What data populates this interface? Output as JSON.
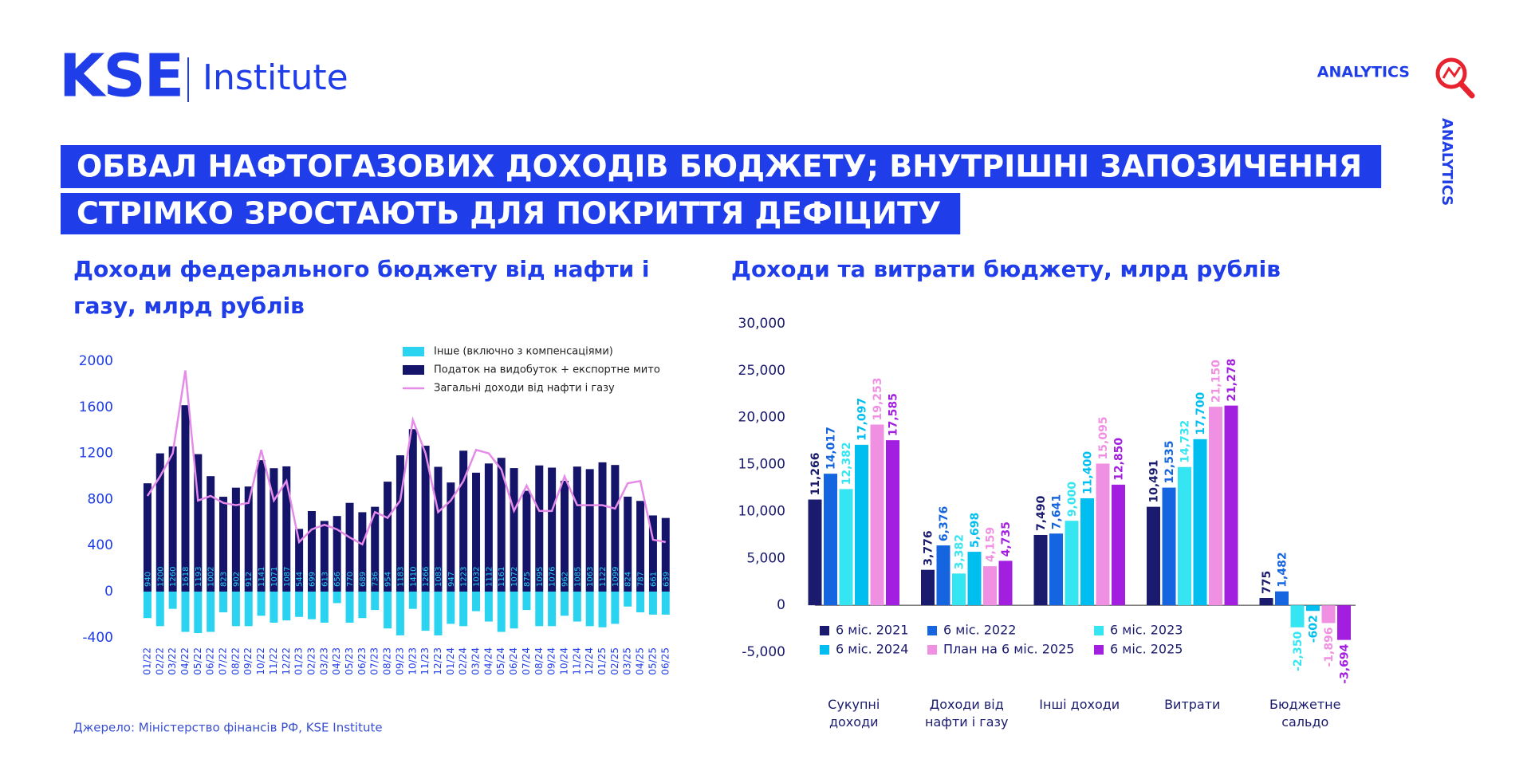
{
  "header": {
    "logo": "KSE",
    "logo_sub": "Institute",
    "analytics": "ANALYTICS",
    "analytics_vertical": "ANALYTICS",
    "title_lines": [
      "ОБВАЛ НАФТОГАЗОВИХ ДОХОДІВ БЮДЖЕТУ; ВНУТРІШНІ ЗАПОЗИЧЕННЯ",
      "СТРІМКО ЗРОСТАЮТЬ ДЛЯ ПОКРИТТЯ ДЕФІЦИТУ"
    ]
  },
  "source": "Джерело: Міністерство фінансів РФ, KSE Institute",
  "chart_data": [
    {
      "type": "bar",
      "stacked": true,
      "title": "Доходи федерального бюджету від нафти і газу, млрд рублів",
      "categories": [
        "01/22",
        "02/22",
        "03/22",
        "04/22",
        "05/22",
        "06/22",
        "07/22",
        "08/22",
        "09/22",
        "10/22",
        "11/22",
        "12/22",
        "01/23",
        "02/23",
        "03/23",
        "04/23",
        "05/23",
        "06/23",
        "07/23",
        "08/23",
        "09/23",
        "10/23",
        "11/23",
        "12/23",
        "01/24",
        "02/24",
        "03/24",
        "04/24",
        "05/24",
        "06/24",
        "07/24",
        "08/24",
        "09/24",
        "10/24",
        "11/24",
        "12/24",
        "01/25",
        "02/25",
        "03/25",
        "04/25",
        "05/25",
        "06/25"
      ],
      "series": [
        {
          "name": "Інше (включно з компенсаціями)",
          "color": "#2ad4f0",
          "type": "bar",
          "values": [
            -230,
            -300,
            -150,
            -350,
            -360,
            -350,
            -180,
            -300,
            -300,
            -210,
            -270,
            -250,
            -220,
            -240,
            -270,
            -100,
            -270,
            -230,
            -160,
            -320,
            -380,
            -150,
            -340,
            -380,
            -280,
            -300,
            -170,
            -260,
            -350,
            -320,
            -160,
            -300,
            -300,
            -210,
            -260,
            -300,
            -310,
            -280,
            -130,
            -180,
            -200,
            -200
          ]
        },
        {
          "name": "Податок на видобуток + експортне мито",
          "color": "#14146b",
          "type": "bar",
          "data_labels": true,
          "values": [
            940,
            1200,
            1260,
            1618,
            1193,
            1002,
            823,
            902,
            912,
            1141,
            1071,
            1087,
            544,
            699,
            613,
            656,
            770,
            689,
            736,
            954,
            1183,
            1410,
            1266,
            1083,
            947,
            1223,
            1032,
            1112,
            1161,
            1072,
            875,
            1095,
            1076,
            962,
            1085,
            1063,
            1122,
            1099,
            824,
            787,
            661,
            639
          ]
        },
        {
          "name": "Загальні доходи від нафти і газу",
          "color": "#e58be8",
          "type": "line",
          "values": [
            830,
            1000,
            1200,
            1920,
            790,
            830,
            770,
            750,
            770,
            1230,
            790,
            960,
            430,
            540,
            580,
            540,
            470,
            410,
            690,
            640,
            790,
            1490,
            1200,
            690,
            790,
            960,
            1230,
            1200,
            1060,
            700,
            920,
            700,
            700,
            1000,
            750,
            750,
            750,
            720,
            940,
            960,
            450,
            430
          ]
        }
      ],
      "ylim": [
        -450,
        2000
      ],
      "yticks": [
        -400,
        0,
        400,
        800,
        1200,
        1600,
        2000
      ],
      "grid": false
    },
    {
      "type": "bar",
      "title": "Доходи та витрати бюджету, млрд рублів",
      "categories": [
        "Сукупні доходи",
        "Доходи від нафти і газу",
        "Інші доходи",
        "Витрати",
        "Бюджетне сальдо"
      ],
      "series": [
        {
          "name": "6 міс. 2021",
          "color": "#1a1a6e",
          "values": [
            11266,
            3776,
            7490,
            10491,
            775
          ],
          "value_labels": [
            "11,266",
            "3,776",
            "7,490",
            "10,491",
            "775"
          ]
        },
        {
          "name": "6 міс. 2022",
          "color": "#1565e0",
          "values": [
            14017,
            6376,
            7641,
            12535,
            1482
          ],
          "value_labels": [
            "14,017",
            "6,376",
            "7,641",
            "12,535",
            "1,482"
          ]
        },
        {
          "name": "6 міс. 2023",
          "color": "#35e6f2",
          "values": [
            12382,
            3382,
            9000,
            14732,
            -2350
          ],
          "value_labels": [
            "12,382",
            "3,382",
            "9,000",
            "14,732",
            "-2,350"
          ]
        },
        {
          "name": "6 міс. 2024",
          "color": "#00bff0",
          "values": [
            17097,
            5698,
            11400,
            17700,
            -602
          ],
          "value_labels": [
            "17,097",
            "5,698",
            "11,400",
            "17,700",
            "-602"
          ]
        },
        {
          "name": "План на 6 міс. 2025",
          "color": "#f090e2",
          "values": [
            19253,
            4159,
            15095,
            21150,
            -1896
          ],
          "value_labels": [
            "19,253",
            "4,159",
            "15,095",
            "21,150",
            "-1,896"
          ]
        },
        {
          "name": "6 міс. 2025",
          "color": "#a31fe0",
          "values": [
            17585,
            4735,
            12850,
            21278,
            -3694
          ],
          "value_labels": [
            "17,585",
            "4,735",
            "12,850",
            "21,278",
            "-3,694"
          ]
        }
      ],
      "ylim": [
        -5000,
        30000
      ],
      "yticks": [
        {
          "value": -5000,
          "label": "-5,000"
        },
        0,
        {
          "value": 5000,
          "label": "5,000"
        },
        {
          "value": 10000,
          "label": "10,000"
        },
        {
          "value": 15000,
          "label": "15,000"
        },
        {
          "value": 20000,
          "label": "20,000"
        },
        {
          "value": 25000,
          "label": "25,000"
        },
        {
          "value": 30000,
          "label": "30,000"
        }
      ],
      "grid": false
    }
  ]
}
